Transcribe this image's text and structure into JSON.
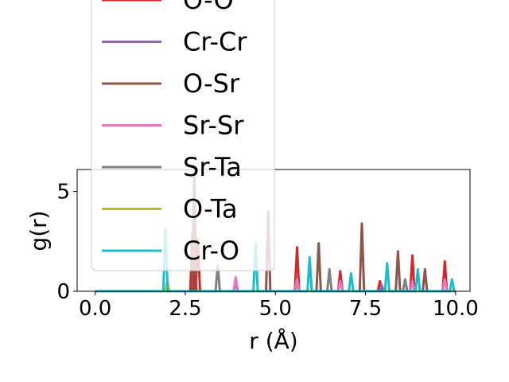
{
  "chart_data": {
    "type": "line",
    "title": "",
    "xlabel": "r (Å)",
    "ylabel": "g(r)",
    "xlim": [
      -0.5,
      10.4
    ],
    "ylim": [
      0,
      6.1
    ],
    "xticks": [
      0.0,
      2.5,
      5.0,
      7.5,
      10.0
    ],
    "xtick_labels": [
      "0.0",
      "2.5",
      "5.0",
      "7.5",
      "10.0"
    ],
    "yticks": [
      0,
      5
    ],
    "ytick_labels": [
      "0",
      "5"
    ],
    "grid": false,
    "legend_position": "upper-left, overflowing above the axes",
    "peak_half_width": 0.06,
    "series": [
      {
        "name": "O-O",
        "color": "#d62728",
        "peaks": [
          [
            2.7,
            3.0
          ],
          [
            2.85,
            2.6
          ],
          [
            3.9,
            0.5
          ],
          [
            5.6,
            2.2
          ],
          [
            6.8,
            1.0
          ],
          [
            7.9,
            0.5
          ],
          [
            8.8,
            1.8
          ],
          [
            9.7,
            1.5
          ]
        ]
      },
      {
        "name": "Cr-Cr",
        "color": "#9467bd",
        "peaks": [
          [
            3.9,
            0.4
          ],
          [
            5.6,
            0.4
          ],
          [
            7.95,
            0.3
          ]
        ]
      },
      {
        "name": "O-Sr",
        "color": "#8c564b",
        "peaks": [
          [
            2.75,
            6.0
          ],
          [
            4.8,
            4.0
          ],
          [
            6.2,
            2.4
          ],
          [
            7.4,
            3.4
          ],
          [
            8.4,
            2.0
          ],
          [
            9.15,
            1.1
          ]
        ]
      },
      {
        "name": "Sr-Sr",
        "color": "#e377c2",
        "peaks": [
          [
            3.9,
            0.7
          ],
          [
            5.6,
            0.6
          ],
          [
            6.8,
            0.5
          ],
          [
            8.8,
            0.5
          ],
          [
            9.7,
            0.6
          ]
        ]
      },
      {
        "name": "Sr-Ta",
        "color": "#7f7f7f",
        "peaks": [
          [
            3.4,
            1.3
          ],
          [
            6.5,
            1.1
          ],
          [
            8.6,
            0.6
          ]
        ]
      },
      {
        "name": "O-Ta",
        "color": "#bcbd22",
        "peaks": [
          [
            2.0,
            0.5
          ]
        ]
      },
      {
        "name": "Cr-O",
        "color": "#17becf",
        "peaks": [
          [
            1.95,
            3.1
          ],
          [
            4.45,
            2.4
          ],
          [
            5.95,
            1.7
          ],
          [
            7.1,
            0.9
          ],
          [
            8.1,
            1.4
          ],
          [
            8.95,
            1.1
          ],
          [
            9.9,
            0.6
          ]
        ]
      }
    ]
  }
}
